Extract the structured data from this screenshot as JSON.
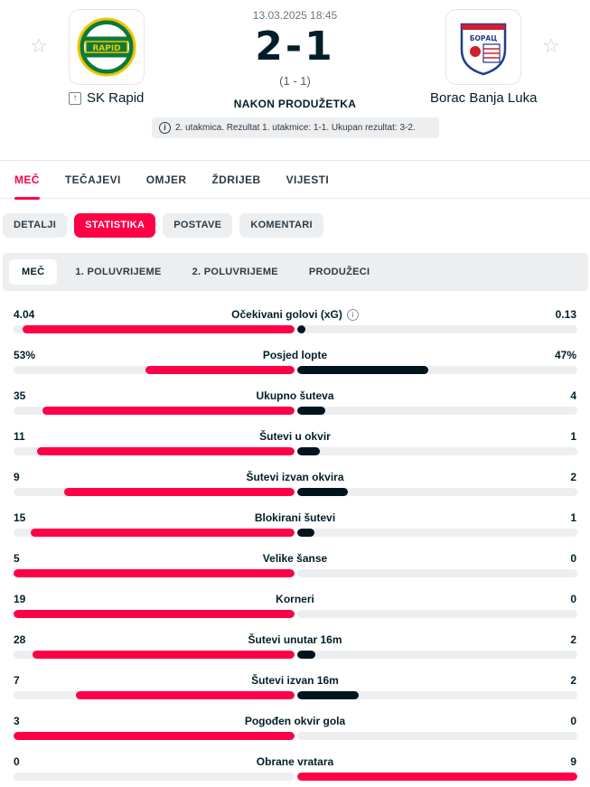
{
  "match": {
    "datetime": "13.03.2025 18:45",
    "score": "2-1",
    "halftime": "(1 - 1)",
    "status": "NAKON PRODUŽETKA",
    "info": "2. utakmica. Rezultat 1. utakmice: 1-1. Ukupan rezultat: 3-2."
  },
  "home": {
    "name": "SK Rapid",
    "logo_text": "RAPID"
  },
  "away": {
    "name": "Borac Banja Luka",
    "logo_text": "БОРАЦ"
  },
  "main_tabs": [
    "MEČ",
    "TEČAJEVI",
    "OMJER",
    "ŽDRIJEB",
    "VIJESTI"
  ],
  "sub_tabs": [
    "DETALJI",
    "STATISTIKA",
    "POSTAVE",
    "KOMENTARI"
  ],
  "periods": [
    "MEČ",
    "1. POLUVRIJEME",
    "2. POLUVRIJEME",
    "PRODUŽECI"
  ],
  "colors": {
    "accent": "#ff0046",
    "dark": "#00141e",
    "track": "#eceef0"
  },
  "stats": [
    {
      "name": "Očekivani golovi (xG)",
      "home": "4.04",
      "away": "0.13",
      "h": 4.04,
      "a": 0.13,
      "info": true
    },
    {
      "name": "Posjed lopte",
      "home": "53%",
      "away": "47%",
      "h": 53,
      "a": 47
    },
    {
      "name": "Ukupno šuteva",
      "home": "35",
      "away": "4",
      "h": 35,
      "a": 4
    },
    {
      "name": "Šutevi u okvir",
      "home": "11",
      "away": "1",
      "h": 11,
      "a": 1
    },
    {
      "name": "Šutevi izvan okvira",
      "home": "9",
      "away": "2",
      "h": 9,
      "a": 2
    },
    {
      "name": "Blokirani šutevi",
      "home": "15",
      "away": "1",
      "h": 15,
      "a": 1
    },
    {
      "name": "Velike šanse",
      "home": "5",
      "away": "0",
      "h": 5,
      "a": 0
    },
    {
      "name": "Korneri",
      "home": "19",
      "away": "0",
      "h": 19,
      "a": 0
    },
    {
      "name": "Šutevi unutar 16m",
      "home": "28",
      "away": "2",
      "h": 28,
      "a": 2
    },
    {
      "name": "Šutevi izvan 16m",
      "home": "7",
      "away": "2",
      "h": 7,
      "a": 2
    },
    {
      "name": "Pogođen okvir gola",
      "home": "3",
      "away": "0",
      "h": 3,
      "a": 0
    },
    {
      "name": "Obrane vratara",
      "home": "0",
      "away": "9",
      "h": 0,
      "a": 9
    }
  ]
}
